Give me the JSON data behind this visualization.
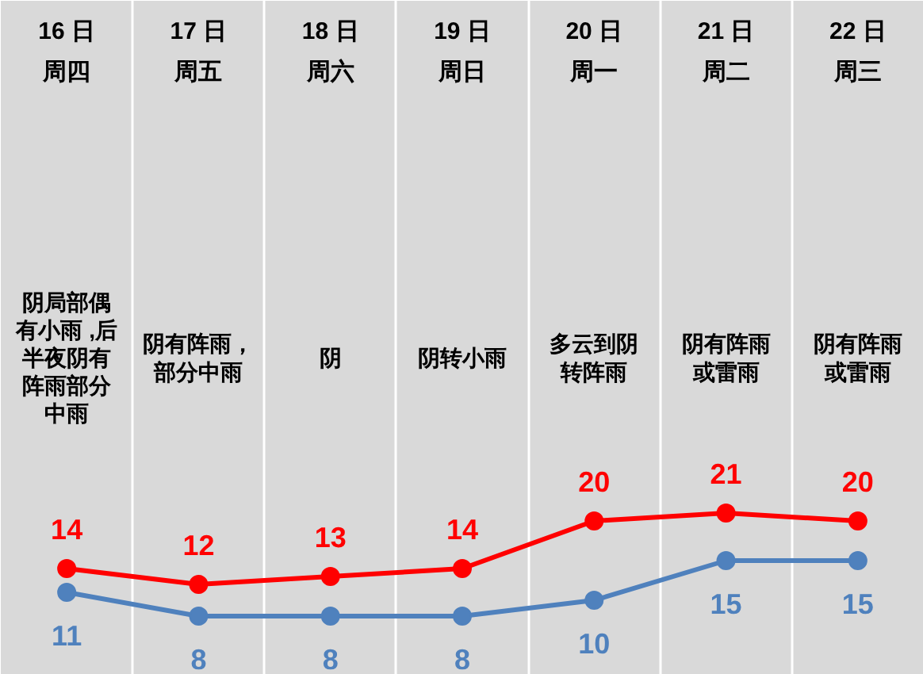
{
  "chart_data": {
    "type": "line",
    "categories": [
      "16 日周四",
      "17 日周五",
      "18 日周六",
      "19 日周日",
      "20 日周一",
      "21 日周二",
      "22 日周三"
    ],
    "series": [
      {
        "color": "#ff0000",
        "values": [
          14,
          12,
          13,
          14,
          20,
          21,
          20
        ]
      },
      {
        "color": "#4f81bd",
        "values": [
          11,
          8,
          8,
          8,
          10,
          15,
          15
        ]
      }
    ],
    "annotations": [
      "阴局部偶有小雨 ,后半夜阴有阵雨部分中雨",
      "阴有阵雨，部分中雨",
      "阴",
      "阴转小雨",
      "多云到阴转阵雨",
      "阴有阵雨或雷雨",
      "阴有阵雨或雷雨"
    ],
    "data_labels": true,
    "marker": "circle",
    "line_style": "solid",
    "grid": "x"
  }
}
